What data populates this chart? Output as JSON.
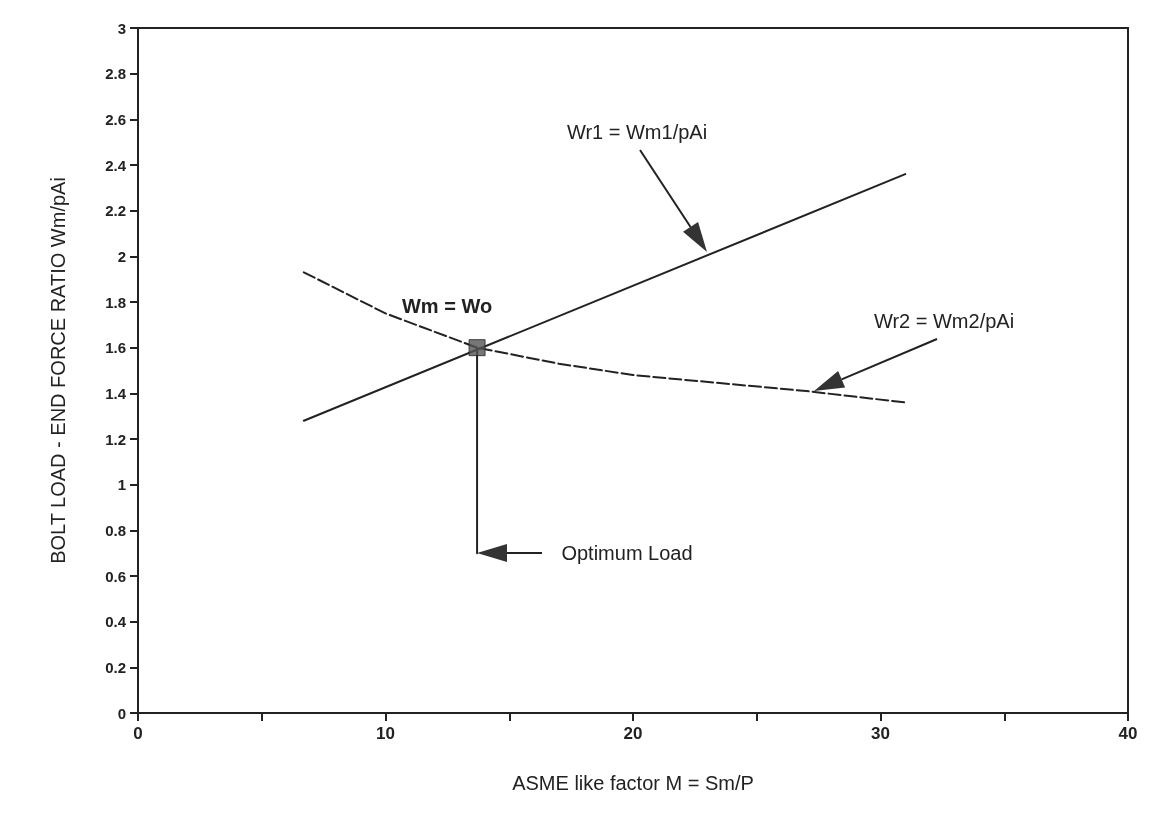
{
  "chart_data": {
    "type": "line",
    "xlabel": "ASME like factor M = Sm/P",
    "ylabel": "BOLT LOAD - END FORCE RATIO Wm/pAi",
    "xlim": [
      0,
      40
    ],
    "xticks": [
      0,
      {
        "value": 5,
        "label": null
      },
      10,
      {
        "value": 15,
        "label": null
      },
      20,
      {
        "value": 25,
        "label": null
      },
      30,
      {
        "value": 35,
        "label": null
      },
      40
    ],
    "ylim": [
      0,
      3
    ],
    "yticks": [
      0,
      0.2,
      0.4,
      0.6,
      0.8,
      1,
      1.2,
      1.4,
      1.6,
      1.8,
      2,
      2.2,
      2.4,
      2.6,
      2.8,
      3
    ],
    "marker": "none",
    "series": [
      {
        "type": "line",
        "line_style": "solid",
        "color": "#222222",
        "x": [
          6.7,
          31
        ],
        "values": [
          1.28,
          2.36
        ]
      },
      {
        "type": "line",
        "line_style": "dashed",
        "color": "#222222",
        "x": [
          6.7,
          10,
          13.7,
          17,
          20,
          24,
          27,
          31
        ],
        "values": [
          1.93,
          1.75,
          1.6,
          1.53,
          1.48,
          1.44,
          1.41,
          1.36
        ]
      },
      {
        "type": "scatter",
        "marker": "square",
        "color": "#555555",
        "x": [
          13.7
        ],
        "values": [
          1.6
        ]
      },
      {
        "type": "line",
        "line_style": "solid",
        "color": "#222222",
        "x": [
          13.7,
          13.7
        ],
        "values": [
          1.6,
          0.7
        ]
      }
    ],
    "annotations": [
      "Wr1 = Wm1/pAi",
      "Wr2 = Wm2/pAi",
      {
        "text": "Wm = Wo",
        "x": 13.7,
        "y": 1.6
      },
      "Optimum Load"
    ]
  }
}
